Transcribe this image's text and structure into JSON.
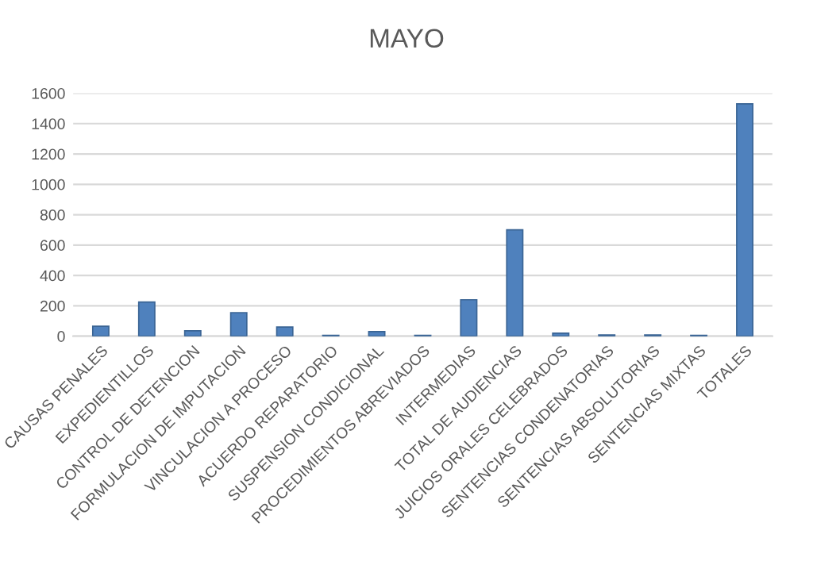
{
  "chart_data": {
    "type": "bar",
    "title": "MAYO",
    "categories": [
      "CAUSAS PENALES",
      "EXPEDIENTILLOS",
      "CONTROL DE DETENCION",
      "FORMULACION DE IMPUTACION",
      "VINCULACION A PROCESO",
      "ACUERDO REPARATORIO",
      "SUSPENSION CONDICIONAL",
      "PROCEDIMIENTOS ABREVIADOS",
      "INTERMEDIAS",
      "TOTAL DE AUDIENCIAS",
      "JUICIOS ORALES CELEBRADOS",
      "SENTENCIAS CONDENATORIAS",
      "SENTENCIAS ABSOLUTORIAS",
      "SENTENCIAS MIXTAS",
      "TOTALES"
    ],
    "values": [
      65,
      225,
      35,
      155,
      60,
      5,
      30,
      5,
      240,
      700,
      20,
      8,
      8,
      5,
      1530
    ],
    "color": "#4f81bd",
    "ylim": [
      0,
      1600
    ],
    "yticks": [
      0,
      200,
      400,
      600,
      800,
      1000,
      1200,
      1400,
      1600
    ],
    "grid": "y"
  }
}
